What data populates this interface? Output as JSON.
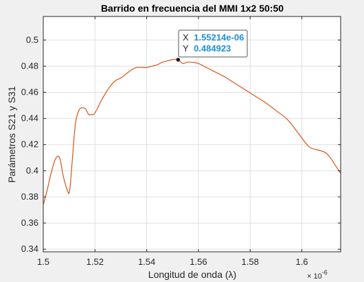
{
  "chart_data": {
    "type": "line",
    "title": "Barrido en frecuencia del MMI 1x2 50:50",
    "xlabel": "Longitud de onda (λ)",
    "ylabel": "Parámetros S21 y S31",
    "x_exponent_label": "× 10",
    "x_exponent_power": "-6",
    "xlim": [
      1.5,
      1.615
    ],
    "ylim": [
      0.338,
      0.518
    ],
    "x_ticks": [
      1.5,
      1.52,
      1.54,
      1.56,
      1.58,
      1.6
    ],
    "x_tick_labels": [
      "1.5",
      "1.52",
      "1.54",
      "1.56",
      "1.58",
      "1.6"
    ],
    "y_ticks": [
      0.34,
      0.36,
      0.38,
      0.4,
      0.42,
      0.44,
      0.46,
      0.48,
      0.5
    ],
    "y_tick_labels": [
      "0.34",
      "0.36",
      "0.38",
      "0.4",
      "0.42",
      "0.44",
      "0.46",
      "0.48",
      "0.5"
    ],
    "grid": true,
    "line_color": "#d95319",
    "series": [
      {
        "x": [
          1.5,
          1.5015,
          1.503,
          1.5045,
          1.5055,
          1.5065,
          1.5075,
          1.5085,
          1.5095,
          1.51,
          1.5105,
          1.5115,
          1.5125,
          1.514,
          1.5155,
          1.5165,
          1.5175,
          1.5185,
          1.5195,
          1.5205,
          1.522,
          1.524,
          1.526,
          1.528,
          1.53,
          1.532,
          1.534,
          1.536,
          1.538,
          1.54,
          1.542,
          1.544,
          1.546,
          1.548,
          1.55,
          1.5521,
          1.554,
          1.5555,
          1.5575,
          1.56,
          1.563,
          1.566,
          1.57,
          1.574,
          1.578,
          1.582,
          1.586,
          1.59,
          1.594,
          1.597,
          1.6,
          1.603,
          1.606,
          1.609,
          1.611,
          1.613,
          1.615
        ],
        "y": [
          0.374,
          0.385,
          0.398,
          0.408,
          0.411,
          0.409,
          0.398,
          0.39,
          0.384,
          0.383,
          0.39,
          0.415,
          0.437,
          0.447,
          0.448,
          0.447,
          0.443,
          0.443,
          0.443,
          0.446,
          0.452,
          0.459,
          0.465,
          0.469,
          0.471,
          0.474,
          0.477,
          0.479,
          0.479,
          0.479,
          0.48,
          0.481,
          0.483,
          0.484,
          0.485,
          0.484923,
          0.482,
          0.483,
          0.483,
          0.482,
          0.479,
          0.476,
          0.472,
          0.467,
          0.462,
          0.457,
          0.452,
          0.446,
          0.44,
          0.433,
          0.425,
          0.418,
          0.416,
          0.414,
          0.41,
          0.404,
          0.398
        ]
      }
    ],
    "datatip": {
      "x_key": "X",
      "x_value": "1.55214e-06",
      "y_key": "Y",
      "y_value": "0.484923",
      "x": 1.55214,
      "y": 0.484923
    }
  }
}
